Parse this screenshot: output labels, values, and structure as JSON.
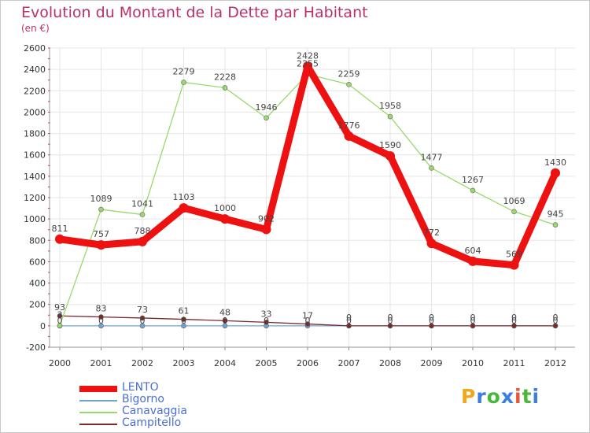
{
  "title": "Evolution du Montant de la Dette par Habitant",
  "subtitle": "(en €)",
  "logo": {
    "letters": [
      "P",
      "r",
      "o",
      "x",
      "i",
      "t",
      "i"
    ],
    "colors": [
      "#f2a71b",
      "#3b7de0",
      "#49b83a",
      "#3b7de0",
      "#e8553a",
      "#49b83a",
      "#3b7de0"
    ]
  },
  "chart_data": {
    "type": "line",
    "x": [
      "2000",
      "2001",
      "2002",
      "2003",
      "2004",
      "2005",
      "2006",
      "2007",
      "2008",
      "2009",
      "2010",
      "2011",
      "2012"
    ],
    "ylim": [
      -200,
      2600
    ],
    "yticks": [
      "-200",
      "0",
      "200",
      "400",
      "600",
      "800",
      "1000",
      "1200",
      "1400",
      "1600",
      "1800",
      "2000",
      "2200",
      "2400",
      "2600"
    ],
    "grid": true,
    "legend_position": "bottom-left",
    "series": [
      {
        "name": "LENTO",
        "color": "#ee1111",
        "values": [
          811,
          757,
          788,
          1103,
          1000,
          902,
          2428,
          1776,
          1590,
          772,
          604,
          569,
          1430
        ],
        "labels": [
          "811",
          "757",
          "788",
          "1103",
          "1000",
          "902",
          "2428",
          "1776",
          "1590",
          "772",
          "604",
          "569",
          "1430"
        ]
      },
      {
        "name": "Bigorno",
        "color": "#6fa3d8",
        "values": [
          0,
          0,
          0,
          0,
          0,
          0,
          0,
          0,
          0,
          0,
          0,
          0,
          0
        ],
        "labels": [
          "0",
          "0",
          "0",
          "0",
          "0",
          "0",
          "0",
          "0",
          "0",
          "0",
          "0",
          "0",
          "0"
        ]
      },
      {
        "name": "Canavaggia",
        "color": "#99d96b",
        "values": [
          3,
          1089,
          1041,
          2279,
          2228,
          1946,
          2355,
          2259,
          1958,
          1477,
          1267,
          1069,
          945
        ],
        "labels": [
          "3",
          "1089",
          "1041",
          "2279",
          "2228",
          "1946",
          "2355",
          "2259",
          "1958",
          "1477",
          "1267",
          "1069",
          "945"
        ]
      },
      {
        "name": "Campitello",
        "color": "#7a2a2a",
        "values": [
          93,
          83,
          73,
          61,
          48,
          33,
          17,
          0,
          0,
          0,
          0,
          0,
          0
        ],
        "labels": [
          "93",
          "83",
          "73",
          "61",
          "48",
          "33",
          "17",
          "0",
          "0",
          "0",
          "0",
          "0",
          "0"
        ]
      }
    ]
  }
}
